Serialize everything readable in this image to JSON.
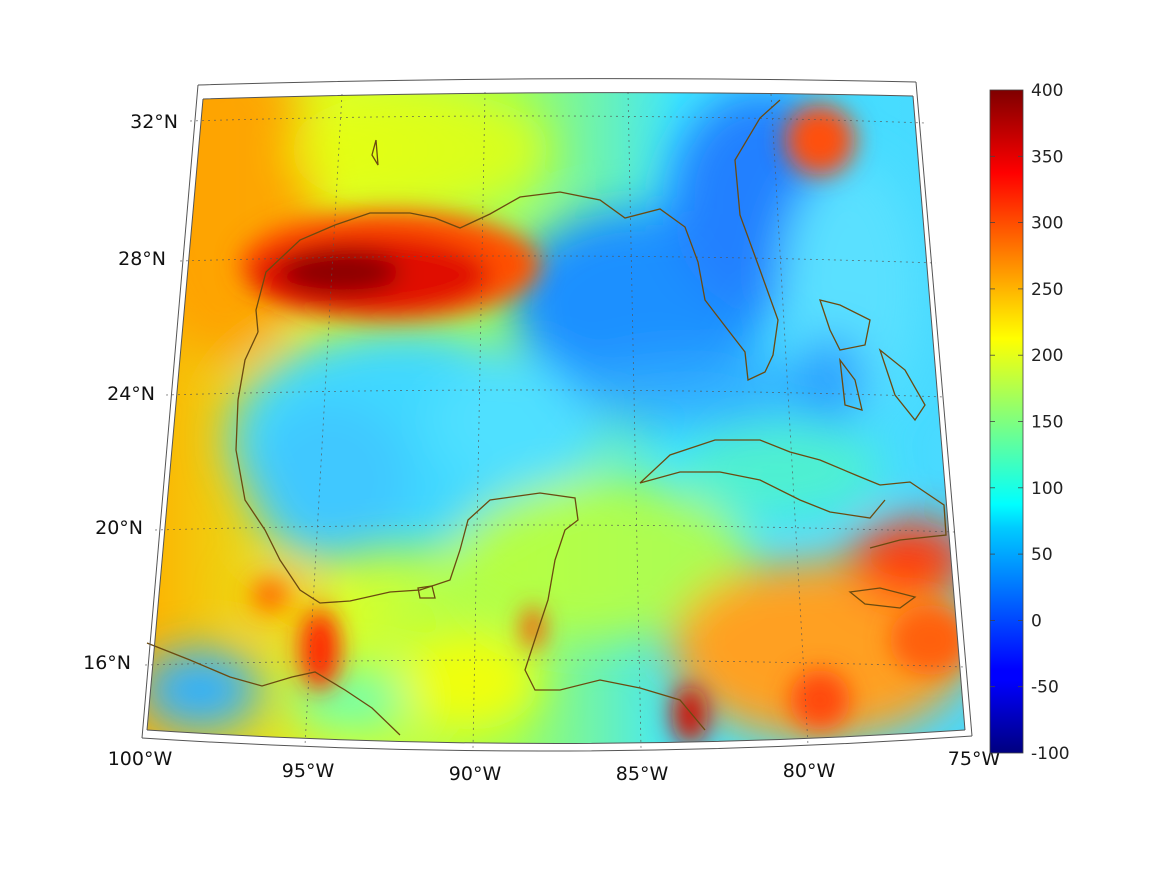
{
  "map": {
    "lat_labels": [
      "32°N",
      "28°N",
      "24°N",
      "20°N",
      "16°N"
    ],
    "lon_labels": [
      "100°W",
      "95°W",
      "90°W",
      "85°W",
      "80°W",
      "75°W"
    ],
    "extent": {
      "lon": [
        -100,
        -75
      ],
      "lat": [
        14,
        33
      ]
    }
  },
  "colorbar": {
    "ticks": [
      "400",
      "350",
      "300",
      "250",
      "200",
      "150",
      "100",
      "50",
      "0",
      "-50",
      "-100"
    ],
    "range": [
      -100,
      400
    ],
    "colormap": "jet"
  },
  "colors": {
    "coastline": "#6b4a10",
    "grid": "#555555",
    "frame": "#555555"
  }
}
